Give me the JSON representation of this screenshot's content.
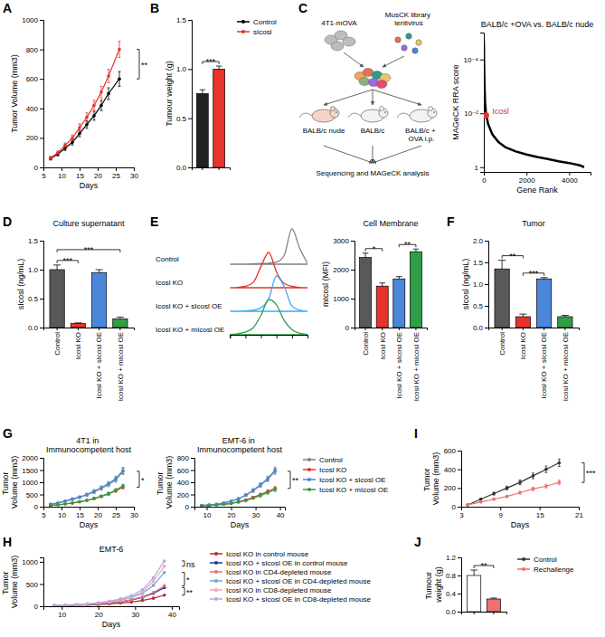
{
  "chart_data": [
    {
      "panel": "A",
      "type": "line",
      "x_label": "Days",
      "y_label": "Tumor Volume (mm3)",
      "xlim": [
        5,
        30
      ],
      "xticks": [
        5,
        10,
        15,
        20,
        25,
        30
      ],
      "ylim": [
        0,
        1000
      ],
      "yticks": [
        0,
        200,
        400,
        600,
        800,
        1000
      ],
      "marker": "circle",
      "legend": "right",
      "x": [
        7,
        9,
        11,
        13,
        15,
        17,
        19,
        21,
        23,
        26
      ],
      "series": [
        {
          "name": "Control",
          "color": "#000000",
          "values": [
            60,
            90,
            130,
            170,
            230,
            290,
            350,
            420,
            500,
            600
          ],
          "errors": [
            10,
            12,
            15,
            18,
            22,
            25,
            30,
            35,
            40,
            50
          ]
        },
        {
          "name": "sIcosl",
          "color": "#e8322b",
          "values": [
            65,
            100,
            150,
            200,
            270,
            340,
            420,
            510,
            620,
            800
          ],
          "errors": [
            10,
            12,
            15,
            20,
            25,
            30,
            35,
            40,
            45,
            55
          ]
        }
      ],
      "annotations": [
        {
          "text": "**",
          "between": [
            0,
            1
          ]
        }
      ]
    },
    {
      "panel": "B",
      "type": "bar",
      "y_label": "Tumour weight (g)",
      "categories": [
        null,
        null
      ],
      "values": [
        0.75,
        1.0
      ],
      "errors": [
        0.04,
        0.03
      ],
      "colors": [
        "#222222",
        "#e8322b"
      ],
      "ylim": [
        0,
        1.5
      ],
      "yticks": [
        {
          "value": 0,
          "label": "0.0"
        },
        {
          "value": 0.5,
          "label": "0.5"
        },
        {
          "value": 1,
          "label": "1.0"
        },
        {
          "value": 1.5,
          "label": "1.5"
        }
      ],
      "annotations": [
        {
          "text": "***",
          "between": [
            0,
            1
          ]
        }
      ]
    },
    {
      "type": "line",
      "title": "BALB/c +OVA vs. BALB/c nude",
      "x_label": "Gene Rank",
      "y_label": "MAGeCK RRA score",
      "log": "y",
      "xlim": [
        0,
        5000
      ],
      "xticks": [
        0,
        2000,
        4000
      ],
      "ylim": [
        1.5,
        1e-05
      ],
      "yticks": [
        {
          "value": 0.0001,
          "label": "10⁻⁴"
        },
        {
          "value": 0.01,
          "label": "10⁻²"
        },
        {
          "value": 1,
          "label": "1"
        }
      ],
      "color": "#000000",
      "x": [
        1,
        10,
        30,
        60,
        100,
        200,
        400,
        700,
        1000,
        1500,
        2000,
        2500,
        3000,
        3500,
        4000,
        4500,
        4700
      ],
      "values": [
        2e-05,
        0.0001,
        0.0008,
        0.004,
        0.01,
        0.025,
        0.06,
        0.12,
        0.18,
        0.26,
        0.34,
        0.42,
        0.5,
        0.6,
        0.7,
        0.85,
        1
      ],
      "highlight": {
        "label": "Icosl",
        "x": 100,
        "value": 0.012,
        "color": "#e8322b"
      }
    },
    {
      "panel": "D",
      "type": "bar",
      "title": "Culture supernatant",
      "y_label": "sIcosl (ng/mL)",
      "categories": [
        "Control",
        "Icosl KO",
        "Icosl KO + sIcosl OE",
        "Icosl KO + mIcosl OE"
      ],
      "values": [
        1.0,
        0.07,
        0.95,
        0.15
      ],
      "errors": [
        0.08,
        0.01,
        0.05,
        0.03
      ],
      "colors": [
        "#595959",
        "#e8322b",
        "#4a86d9",
        "#2e9e47"
      ],
      "ylim": [
        0,
        1.5
      ],
      "yticks": [
        {
          "value": 0,
          "label": "0.0"
        },
        {
          "value": 0.5,
          "label": "0.5"
        },
        {
          "value": 1,
          "label": "1.0"
        },
        {
          "value": 1.5,
          "label": "1.5"
        }
      ],
      "annotations": [
        {
          "text": "***",
          "between": [
            0,
            1
          ]
        },
        {
          "text": "***",
          "between": [
            0,
            3
          ]
        }
      ]
    },
    {
      "panel": "E",
      "type": "ridgeline",
      "x": [
        0,
        1,
        2,
        3,
        4,
        5,
        6,
        7,
        8,
        9,
        10
      ],
      "xlim": [
        0,
        10
      ],
      "xticks": [
        0,
        2,
        4,
        6,
        8,
        10
      ],
      "ylim": [
        0,
        100
      ],
      "tick_labels": false,
      "series": [
        {
          "name": "Control",
          "color": "#808080",
          "values": [
            0,
            0,
            0,
            1,
            2,
            3,
            6,
            25,
            100,
            45,
            3
          ]
        },
        {
          "name": "Icosl KO",
          "color": "#e8322b",
          "values": [
            0,
            1,
            4,
            15,
            60,
            100,
            45,
            12,
            4,
            1,
            0
          ]
        },
        {
          "name": "Icosl KO + sIcosl OE",
          "color": "#3fa9f5",
          "values": [
            0,
            0,
            1,
            3,
            10,
            35,
            100,
            70,
            15,
            3,
            0
          ]
        },
        {
          "name": "Icosl KO + mIcosl OE",
          "color": "#2e9e47",
          "values": [
            1,
            3,
            8,
            20,
            55,
            100,
            85,
            40,
            15,
            4,
            1
          ]
        }
      ]
    },
    {
      "type": "bar",
      "title": "Cell Membrane",
      "y_label": "mIcosl (MFI)",
      "categories": [
        "Control",
        "Icosl KO",
        "Icosl KO + sIcosl OE",
        "Icosl KO + mIcosl OE"
      ],
      "values": [
        2420,
        1430,
        1680,
        2620
      ],
      "errors": [
        150,
        110,
        80,
        90
      ],
      "colors": [
        "#595959",
        "#e8322b",
        "#4a86d9",
        "#2e9e47"
      ],
      "ylim": [
        0,
        3000
      ],
      "yticks": [
        0,
        1000,
        2000,
        3000
      ],
      "annotations": [
        {
          "text": "*",
          "between": [
            0,
            1
          ]
        },
        {
          "text": "**",
          "between": [
            2,
            3
          ]
        }
      ]
    },
    {
      "panel": "F",
      "type": "bar",
      "title": "Tumor",
      "y_label": "sIcosl (ng/mL)",
      "categories": [
        "Control",
        "Icosl KO",
        "Icosl KO + sIcosl OE",
        "Icosl KO + mIcosl OE"
      ],
      "values": [
        1.35,
        0.25,
        1.12,
        0.25
      ],
      "errors": [
        0.2,
        0.06,
        0.03,
        0.03
      ],
      "colors": [
        "#595959",
        "#e8322b",
        "#4a86d9",
        "#2e9e47"
      ],
      "ylim": [
        0,
        2
      ],
      "yticks": [
        {
          "value": 0,
          "label": "0.0"
        },
        {
          "value": 0.5,
          "label": "0.5"
        },
        {
          "value": 1,
          "label": "1.0"
        },
        {
          "value": 1.5,
          "label": "1.5"
        },
        {
          "value": 2,
          "label": "2.0"
        }
      ],
      "annotations": [
        {
          "text": "**",
          "between": [
            0,
            1
          ]
        },
        {
          "text": "***",
          "between": [
            1,
            2
          ]
        }
      ]
    },
    {
      "panel": "G",
      "type": "line",
      "title": "4T1 in Immunocompetent host",
      "x_label": "Days",
      "y_label": "Tumor Volume (mm3)",
      "xlim": [
        5,
        30
      ],
      "xticks": [
        5,
        10,
        15,
        20,
        25,
        30
      ],
      "ylim": [
        0,
        2000
      ],
      "yticks": [
        0,
        500,
        1000,
        1500,
        2000
      ],
      "marker": "circle",
      "x": [
        7,
        9,
        11,
        13,
        15,
        17,
        19,
        21,
        23,
        25,
        27
      ],
      "series": [
        {
          "color": "#808080",
          "values": [
            100,
            150,
            220,
            300,
            380,
            480,
            600,
            750,
            900,
            1100,
            1450
          ],
          "errors": [
            15,
            20,
            25,
            30,
            40,
            50,
            60,
            70,
            80,
            100,
            130
          ]
        },
        {
          "color": "#e8322b",
          "values": [
            50,
            80,
            110,
            150,
            200,
            260,
            330,
            420,
            520,
            650,
            800
          ],
          "errors": [
            10,
            12,
            15,
            20,
            25,
            30,
            35,
            40,
            50,
            60,
            70
          ]
        },
        {
          "color": "#4a86d9",
          "values": [
            100,
            150,
            230,
            320,
            400,
            500,
            640,
            780,
            950,
            1150,
            1480
          ],
          "errors": [
            15,
            20,
            25,
            30,
            40,
            50,
            60,
            70,
            80,
            100,
            130
          ]
        },
        {
          "color": "#2e9e47",
          "values": [
            50,
            80,
            110,
            150,
            200,
            260,
            340,
            430,
            540,
            680,
            850
          ],
          "errors": [
            10,
            12,
            15,
            20,
            25,
            30,
            35,
            40,
            50,
            60,
            70
          ]
        }
      ],
      "annotations": [
        {
          "text": "*",
          "between": [
            0,
            1
          ]
        }
      ]
    },
    {
      "type": "line",
      "title": "EMT-6 in Immunocompetent host",
      "x_label": "Days",
      "y_label": "Tumor Volume (mm3)",
      "xlim": [
        5,
        42
      ],
      "xticks": [
        10,
        20,
        30,
        40
      ],
      "ylim": [
        0,
        800
      ],
      "yticks": [
        0,
        200,
        400,
        600,
        800
      ],
      "marker": "circle",
      "legend": "right",
      "x": [
        8,
        11,
        14,
        17,
        20,
        23,
        26,
        29,
        32,
        35,
        38
      ],
      "series": [
        {
          "name": "Control",
          "color": "#808080",
          "values": [
            20,
            30,
            40,
            60,
            90,
            130,
            190,
            260,
            350,
            450,
            580
          ],
          "errors": [
            5,
            5,
            8,
            10,
            12,
            15,
            20,
            25,
            30,
            40,
            50
          ]
        },
        {
          "name": "Icosl KO",
          "color": "#e8322b",
          "values": [
            15,
            20,
            30,
            40,
            55,
            80,
            110,
            150,
            200,
            250,
            300
          ],
          "errors": [
            4,
            5,
            6,
            8,
            10,
            12,
            15,
            18,
            20,
            25,
            30
          ]
        },
        {
          "name": "Icosl KO + sIcosl OE",
          "color": "#4a86d9",
          "values": [
            20,
            30,
            40,
            60,
            90,
            130,
            190,
            270,
            360,
            460,
            600
          ],
          "errors": [
            5,
            5,
            8,
            10,
            12,
            15,
            20,
            25,
            30,
            40,
            50
          ]
        },
        {
          "name": "Icosl KO + mIcosl OE",
          "color": "#2e9e47",
          "values": [
            15,
            20,
            30,
            40,
            55,
            75,
            100,
            140,
            180,
            230,
            280
          ],
          "errors": [
            4,
            5,
            6,
            8,
            10,
            12,
            15,
            18,
            20,
            25,
            30
          ]
        }
      ],
      "annotations": [
        {
          "text": "**",
          "between": [
            0,
            1
          ]
        }
      ]
    },
    {
      "panel": "H",
      "type": "line",
      "title": "EMT-6",
      "x_label": "Days",
      "y_label": "Tumor Volume (mm3)",
      "xlim": [
        5,
        42
      ],
      "xticks": [
        10,
        20,
        30,
        40
      ],
      "ylim": [
        0,
        1100
      ],
      "yticks": [
        0,
        500,
        1000
      ],
      "marker": "circle",
      "legend": "right",
      "x": [
        8,
        11,
        14,
        17,
        20,
        23,
        26,
        29,
        32,
        35,
        38
      ],
      "series": [
        {
          "name": "Icosl KO in control mouse",
          "color": "#c62828",
          "values": [
            10,
            15,
            20,
            28,
            38,
            52,
            70,
            95,
            130,
            180,
            250
          ]
        },
        {
          "name": "Icosl KO + sIcosl OE in control mouse",
          "color": "#1a3fa0",
          "values": [
            12,
            18,
            26,
            36,
            50,
            70,
            100,
            140,
            200,
            290,
            420
          ]
        },
        {
          "name": "Icosl KO in CD4-depleted mouse",
          "color": "#e57373",
          "values": [
            12,
            18,
            26,
            38,
            52,
            72,
            102,
            145,
            210,
            310,
            460
          ]
        },
        {
          "name": "Icosl KO + sIcosl OE in CD4-depleted mouse",
          "color": "#6fa8dc",
          "values": [
            15,
            22,
            32,
            46,
            66,
            95,
            135,
            195,
            290,
            470,
            760
          ]
        },
        {
          "name": "Icosl KO in CD8-depleted mouse",
          "color": "#f4a6b8",
          "values": [
            15,
            22,
            33,
            48,
            70,
            100,
            145,
            210,
            320,
            560,
            900
          ]
        },
        {
          "name": "Icosl KO + sIcosl OE in CD8-depleted mouse",
          "color": "#b9a6e0",
          "values": [
            18,
            26,
            38,
            55,
            80,
            115,
            165,
            240,
            370,
            640,
            1020
          ]
        }
      ],
      "annotations": [
        {
          "text": "**",
          "between": [
            0,
            1
          ]
        },
        {
          "text": "*",
          "between": [
            2,
            3
          ]
        },
        {
          "text": "ns",
          "between": [
            4,
            5
          ]
        }
      ]
    },
    {
      "panel": "I",
      "type": "line",
      "x_label": "Days",
      "y_label": "Tumor Volume (mm3)",
      "xlim": [
        3,
        21
      ],
      "xticks": [
        3,
        9,
        15,
        21
      ],
      "ylim": [
        0,
        600
      ],
      "yticks": [
        0,
        200,
        400,
        600
      ],
      "marker": "circle",
      "legend": "right",
      "x": [
        4,
        6,
        8,
        10,
        12,
        14,
        16,
        18
      ],
      "series": [
        {
          "name": "Control",
          "color": "#333333",
          "values": [
            20,
            80,
            140,
            200,
            260,
            330,
            400,
            470
          ],
          "errors": [
            5,
            10,
            15,
            20,
            25,
            30,
            35,
            40
          ]
        },
        {
          "name": "Rechallenge",
          "color": "#f07070",
          "values": [
            20,
            50,
            80,
            110,
            150,
            190,
            220,
            260
          ],
          "errors": [
            5,
            8,
            10,
            12,
            15,
            18,
            20,
            25
          ]
        }
      ],
      "annotations": [
        {
          "text": "***",
          "between": [
            0,
            1
          ]
        }
      ]
    },
    {
      "panel": "J",
      "type": "bar",
      "y_label": "Tumour weight (g)",
      "categories": [
        null,
        null
      ],
      "values": [
        0.8,
        0.28
      ],
      "errors": [
        0.12,
        0.02
      ],
      "colors": [
        "#ffffff",
        "#f07070"
      ],
      "ylim": [
        0,
        1.2
      ],
      "yticks": [
        {
          "value": 0,
          "label": "0.0"
        },
        {
          "value": 0.4,
          "label": "0.4"
        },
        {
          "value": 0.8,
          "label": "0.8"
        },
        {
          "value": 1.2,
          "label": "1.2"
        }
      ],
      "annotations": [
        {
          "text": "**",
          "between": [
            0,
            1
          ]
        }
      ]
    }
  ],
  "diagram": {
    "panel": "C",
    "cell_line": "4T1-mOVA",
    "library": "MusCK library lentivirus",
    "hosts": [
      "BALB/c nude",
      "BALB/c",
      "BALB/c + OVA i.p."
    ],
    "analysis": "Sequencing and MAGeCK analysis"
  }
}
